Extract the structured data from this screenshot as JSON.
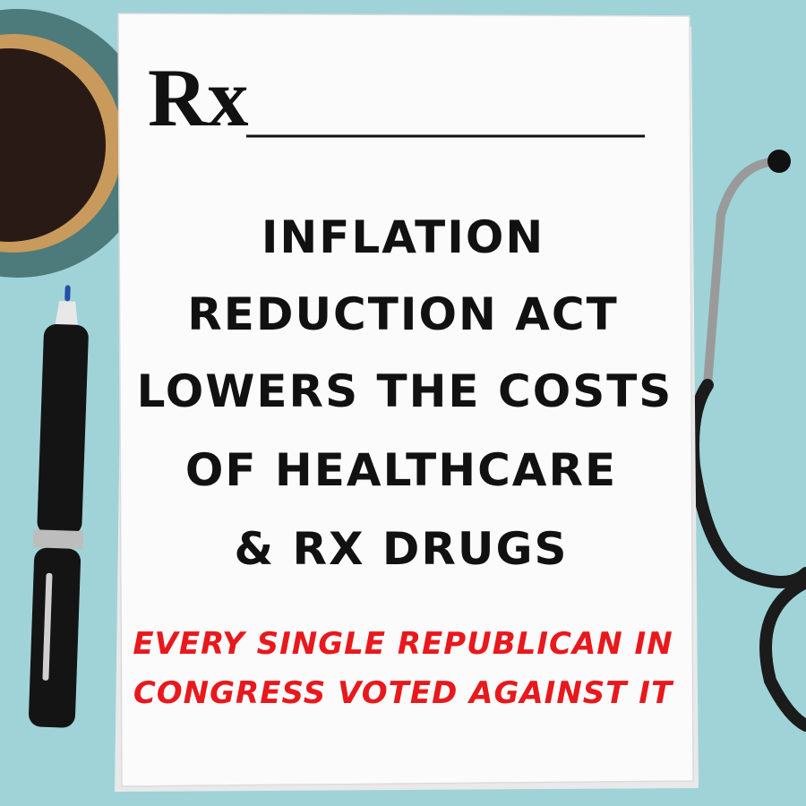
{
  "rx_symbol": "Rx",
  "headline": [
    "INFLATION",
    "REDUCTION ACT",
    "LOWERS THE COSTS",
    "OF HEALTHCARE",
    "& RX DRUGS"
  ],
  "subhead": [
    "EVERY SINGLE REPUBLICAN IN",
    "CONGRESS VOTED AGAINST IT"
  ]
}
